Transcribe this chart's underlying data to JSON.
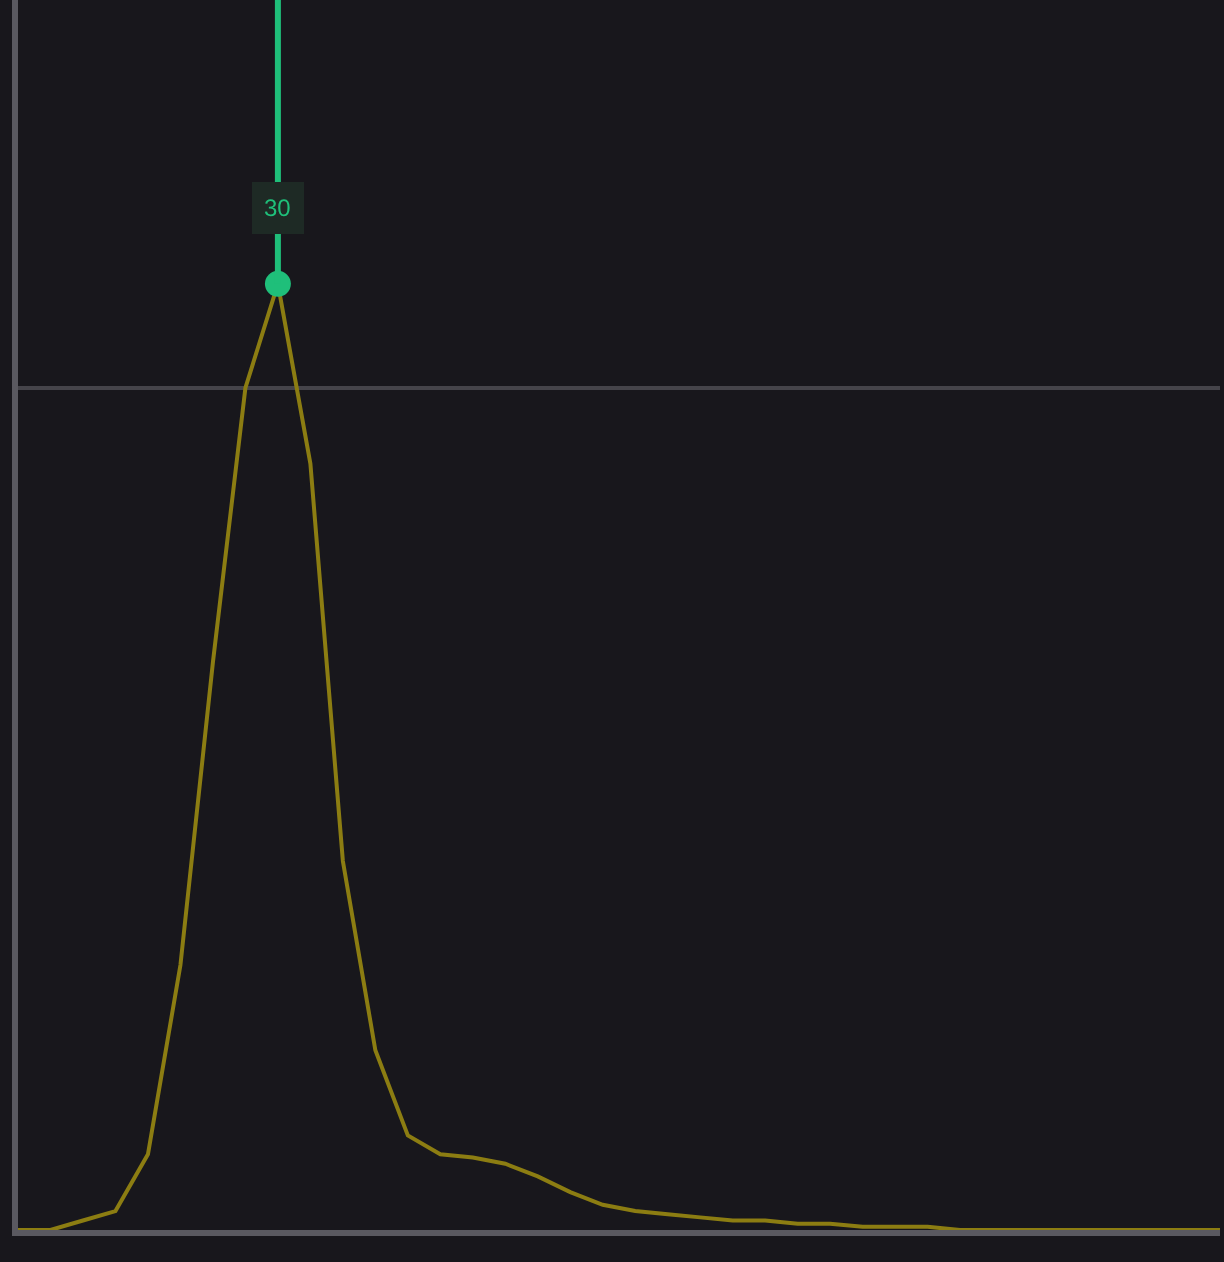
{
  "chart_data": {
    "type": "line",
    "categories": [
      null,
      null,
      null,
      null,
      null,
      null,
      null,
      null,
      null,
      null,
      null,
      null,
      null,
      null,
      null,
      null,
      null,
      null,
      null,
      null,
      null,
      null,
      null,
      null,
      null,
      null,
      null,
      null,
      null,
      null,
      null,
      null,
      null,
      null,
      null,
      null,
      null,
      null
    ],
    "series": [
      {
        "color": "#8c7d12",
        "values": [
          0,
          0,
          0.3,
          0.6,
          2.4,
          8.4,
          18,
          26.7,
          30,
          24.3,
          11.7,
          5.7,
          3,
          2.4,
          2.3,
          2.1,
          1.7,
          1.2,
          0.8,
          0.6,
          0.5,
          0.4,
          0.3,
          0.3,
          0.2,
          0.2,
          0.1,
          0.1,
          0.1,
          0,
          0,
          0,
          0,
          0,
          0,
          0,
          0,
          0
        ],
        "value_labels": [
          null,
          null,
          null,
          null,
          null,
          null,
          null,
          null,
          "30",
          null,
          null,
          null,
          null,
          null,
          null,
          null,
          null,
          null,
          null,
          null,
          null,
          null,
          null,
          null,
          null,
          null,
          null,
          null,
          null,
          null,
          null,
          null,
          null,
          null,
          null,
          null,
          null,
          null
        ]
      }
    ],
    "ylim": [
      0,
      39
    ],
    "ref_lines": [
      {
        "axis": "y",
        "value": 26.7,
        "color": "#45444a"
      }
    ]
  }
}
